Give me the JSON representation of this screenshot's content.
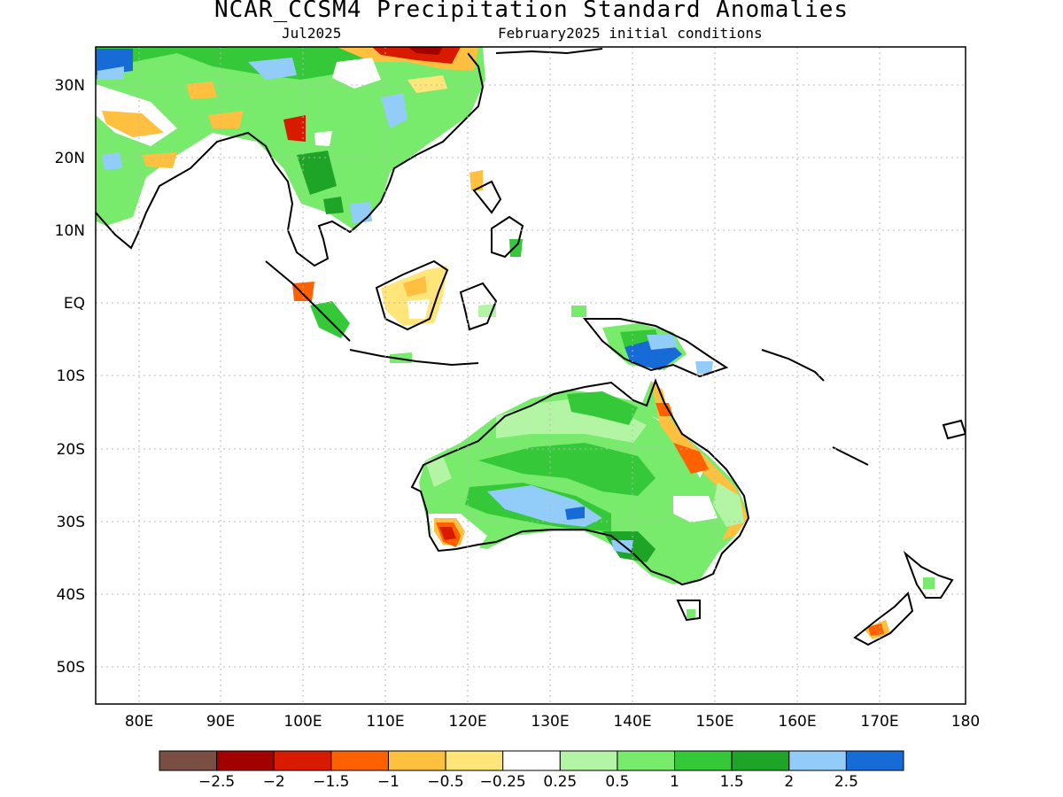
{
  "title": "NCAR_CCSM4 Precipitation Standard Anomalies",
  "valid_month": "Jul2025",
  "init_conditions": "February2025 initial conditions",
  "lat_labels": [
    "30N",
    "20N",
    "10N",
    "EQ",
    "10S",
    "20S",
    "30S",
    "40S",
    "50S"
  ],
  "lon_labels": [
    "80E",
    "90E",
    "100E",
    "110E",
    "120E",
    "130E",
    "140E",
    "150E",
    "160E",
    "170E",
    "180"
  ],
  "colorbar": {
    "colors": [
      "#7a4f43",
      "#a30000",
      "#d81b00",
      "#ff6000",
      "#ffbf3f",
      "#ffe57a",
      "#ffffff",
      "#b3f5a5",
      "#78ea6c",
      "#35c93a",
      "#1ea527",
      "#92cdfa",
      "#166bd6"
    ],
    "labels": [
      "−2.5",
      "−2",
      "−1.5",
      "−1",
      "−0.5",
      "−0.25",
      "0.25",
      "0.5",
      "1",
      "1.5",
      "2",
      "2.5"
    ]
  }
}
